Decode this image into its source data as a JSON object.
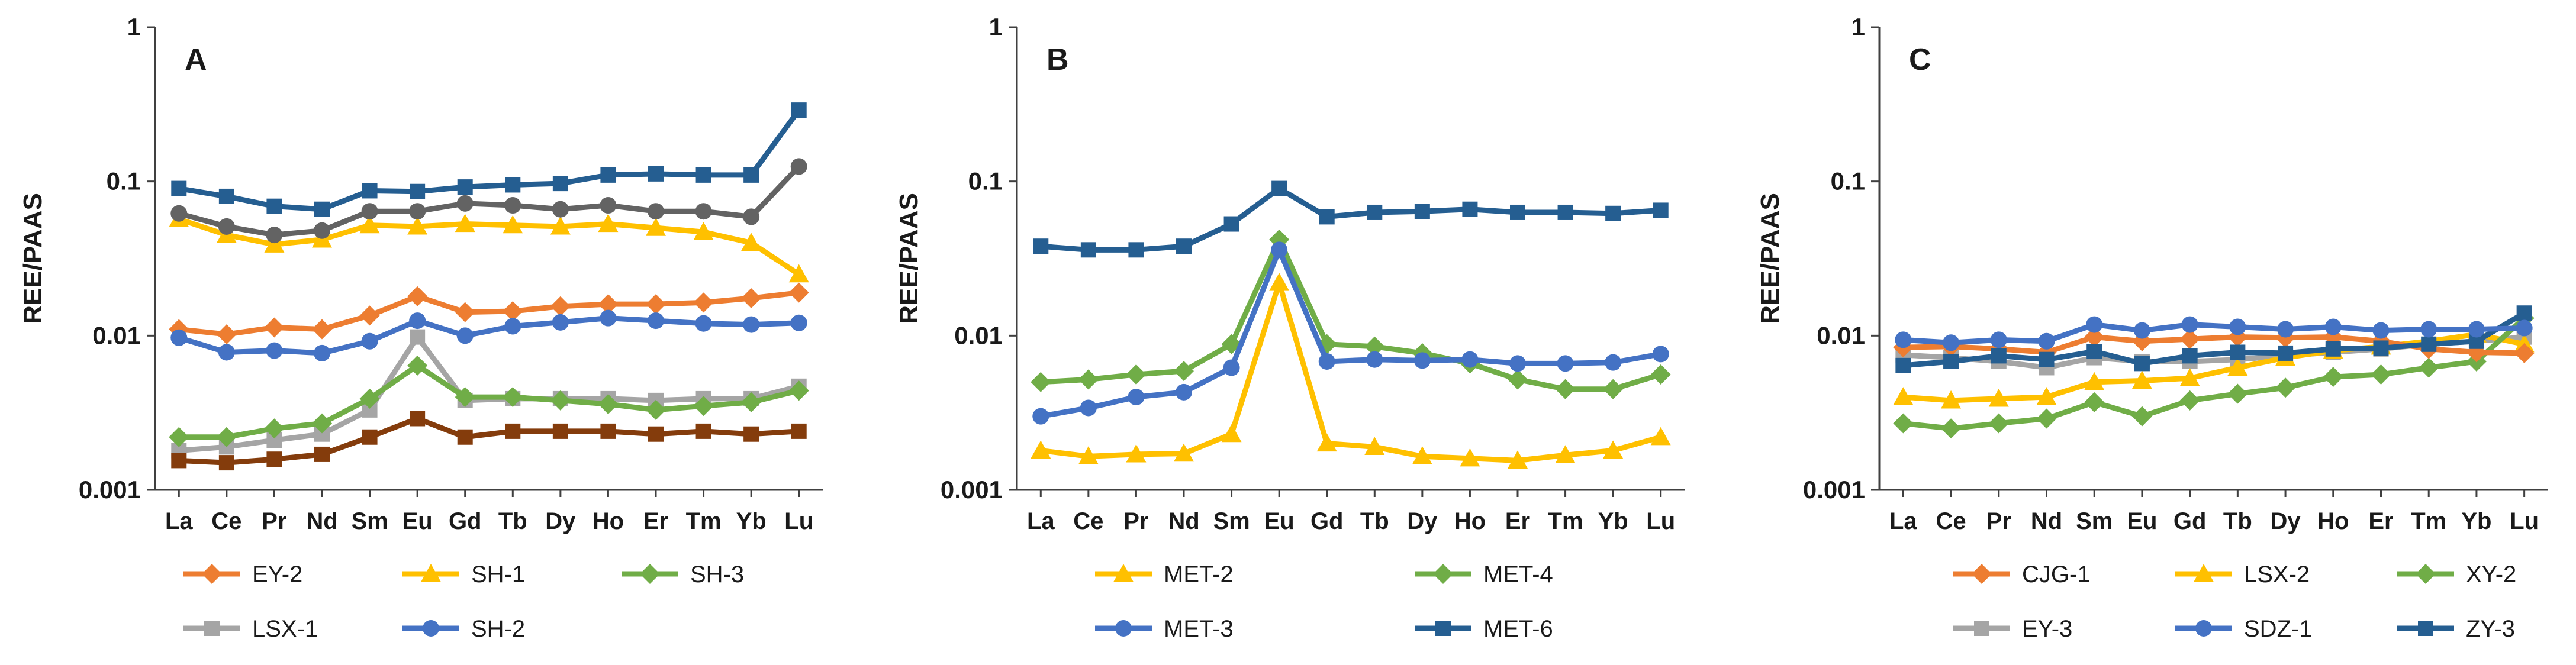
{
  "chart_data": [
    {
      "type": "line",
      "panel_label": "A",
      "ylabel": "REE/PAAS",
      "yscale": "log",
      "ylim": [
        0.001,
        1
      ],
      "ytick_labels": [
        "1",
        "0.1",
        "0.01",
        "0.001"
      ],
      "categories": [
        "La",
        "Ce",
        "Pr",
        "Nd",
        "Sm",
        "Eu",
        "Gd",
        "Tb",
        "Dy",
        "Ho",
        "Er",
        "Tm",
        "Yb",
        "Lu"
      ],
      "series": [
        {
          "name": "LSX-1",
          "color": "#a5a5a5",
          "marker": "square",
          "in_legend": true,
          "values": [
            0.0018,
            0.0019,
            0.0021,
            0.0023,
            0.0033,
            0.0098,
            0.0038,
            0.0039,
            0.0039,
            0.0039,
            0.0038,
            0.0039,
            0.0039,
            0.0047
          ]
        },
        {
          "name": "SH-3",
          "color": "#70ad47",
          "marker": "diamond",
          "in_legend": true,
          "values": [
            0.0022,
            0.0022,
            0.0025,
            0.0027,
            0.0039,
            0.0064,
            0.004,
            0.004,
            0.0038,
            0.0036,
            0.0033,
            0.0035,
            0.0037,
            0.0044
          ]
        },
        {
          "name": "",
          "color": "#843c0c",
          "marker": "square",
          "in_legend": false,
          "values": [
            0.00155,
            0.0015,
            0.00158,
            0.0017,
            0.0022,
            0.0029,
            0.0022,
            0.0024,
            0.0024,
            0.0024,
            0.0023,
            0.0024,
            0.0023,
            0.0024
          ]
        },
        {
          "name": "EY-2",
          "color": "#ed7d31",
          "marker": "diamond",
          "in_legend": true,
          "values": [
            0.011,
            0.0102,
            0.0113,
            0.011,
            0.0135,
            0.018,
            0.0142,
            0.0144,
            0.0155,
            0.016,
            0.016,
            0.0164,
            0.0175,
            0.019
          ]
        },
        {
          "name": "SH-2",
          "color": "#4472c4",
          "marker": "circle",
          "in_legend": true,
          "values": [
            0.0097,
            0.0078,
            0.008,
            0.0077,
            0.0092,
            0.0125,
            0.01,
            0.0115,
            0.0122,
            0.013,
            0.0125,
            0.012,
            0.0118,
            0.0121
          ]
        },
        {
          "name": "SH-1",
          "color": "#ffc000",
          "marker": "triangle",
          "in_legend": true,
          "values": [
            0.057,
            0.045,
            0.039,
            0.042,
            0.052,
            0.051,
            0.053,
            0.052,
            0.051,
            0.053,
            0.05,
            0.047,
            0.04,
            0.025
          ]
        },
        {
          "name": "",
          "color": "#636363",
          "marker": "circle",
          "in_legend": false,
          "values": [
            0.062,
            0.051,
            0.045,
            0.048,
            0.064,
            0.064,
            0.072,
            0.07,
            0.066,
            0.07,
            0.064,
            0.064,
            0.059,
            0.125
          ]
        },
        {
          "name": "",
          "color": "#255e91",
          "marker": "square",
          "in_legend": false,
          "values": [
            0.09,
            0.08,
            0.069,
            0.066,
            0.087,
            0.086,
            0.092,
            0.095,
            0.097,
            0.11,
            0.112,
            0.11,
            0.11,
            0.29
          ]
        }
      ],
      "legend_rows": [
        [
          "EY-2",
          "SH-1",
          "SH-3"
        ],
        [
          "LSX-1",
          "SH-2"
        ]
      ]
    },
    {
      "type": "line",
      "panel_label": "B",
      "ylabel": "REE/PAAS",
      "yscale": "log",
      "ylim": [
        0.001,
        1
      ],
      "ytick_labels": [
        "1",
        "0.1",
        "0.01",
        "0.001"
      ],
      "categories": [
        "La",
        "Ce",
        "Pr",
        "Nd",
        "Sm",
        "Eu",
        "Gd",
        "Tb",
        "Dy",
        "Ho",
        "Er",
        "Tm",
        "Yb",
        "Lu"
      ],
      "series": [
        {
          "name": "MET-2",
          "color": "#ffc000",
          "marker": "triangle",
          "in_legend": true,
          "values": [
            0.0018,
            0.00165,
            0.0017,
            0.00172,
            0.0023,
            0.022,
            0.002,
            0.0019,
            0.00165,
            0.0016,
            0.00155,
            0.00168,
            0.0018,
            0.0022
          ]
        },
        {
          "name": "MET-4",
          "color": "#70ad47",
          "marker": "diamond",
          "in_legend": true,
          "values": [
            0.005,
            0.0052,
            0.0056,
            0.0059,
            0.0088,
            0.042,
            0.0088,
            0.0085,
            0.0077,
            0.0066,
            0.0052,
            0.0045,
            0.0045,
            0.0056
          ]
        },
        {
          "name": "MET-3",
          "color": "#4472c4",
          "marker": "circle",
          "in_legend": true,
          "values": [
            0.003,
            0.0034,
            0.004,
            0.0043,
            0.0062,
            0.036,
            0.0068,
            0.007,
            0.0069,
            0.007,
            0.0066,
            0.0066,
            0.0067,
            0.0076
          ]
        },
        {
          "name": "MET-6",
          "color": "#255e91",
          "marker": "square",
          "in_legend": true,
          "values": [
            0.038,
            0.036,
            0.036,
            0.038,
            0.053,
            0.09,
            0.059,
            0.063,
            0.064,
            0.066,
            0.063,
            0.063,
            0.062,
            0.065
          ]
        }
      ],
      "legend_rows": [
        [
          "MET-2",
          "MET-4"
        ],
        [
          "MET-3",
          "MET-6"
        ]
      ]
    },
    {
      "type": "line",
      "panel_label": "C",
      "ylabel": "REE/PAAS",
      "yscale": "log",
      "ylim": [
        0.001,
        1
      ],
      "ytick_labels": [
        "1",
        "0.1",
        "0.01",
        "0.001"
      ],
      "categories": [
        "La",
        "Ce",
        "Pr",
        "Nd",
        "Sm",
        "Eu",
        "Gd",
        "Tb",
        "Dy",
        "Ho",
        "Er",
        "Tm",
        "Yb",
        "Lu"
      ],
      "series": [
        {
          "name": "EY-3",
          "color": "#a5a5a5",
          "marker": "square",
          "in_legend": true,
          "values": [
            0.0075,
            0.0072,
            0.0068,
            0.0062,
            0.0072,
            0.0068,
            0.0068,
            0.007,
            0.0074,
            0.0078,
            0.0082,
            0.0088,
            0.0092,
            0.0098
          ]
        },
        {
          "name": "LSX-2",
          "color": "#ffc000",
          "marker": "triangle",
          "in_legend": true,
          "values": [
            0.004,
            0.0038,
            0.0039,
            0.004,
            0.005,
            0.0051,
            0.0053,
            0.0062,
            0.0072,
            0.008,
            0.0085,
            0.0092,
            0.0102,
            0.0088
          ]
        },
        {
          "name": "XY-2",
          "color": "#70ad47",
          "marker": "diamond",
          "in_legend": true,
          "values": [
            0.0027,
            0.0025,
            0.0027,
            0.0029,
            0.0037,
            0.003,
            0.0038,
            0.0042,
            0.0046,
            0.0054,
            0.0056,
            0.0062,
            0.0068,
            0.013
          ]
        },
        {
          "name": "CJG-1",
          "color": "#ed7d31",
          "marker": "diamond",
          "in_legend": true,
          "values": [
            0.0084,
            0.0085,
            0.0082,
            0.0078,
            0.0098,
            0.0092,
            0.0095,
            0.0098,
            0.0097,
            0.0098,
            0.0092,
            0.0082,
            0.0078,
            0.0077
          ]
        },
        {
          "name": "ZY-3",
          "color": "#255e91",
          "marker": "square",
          "in_legend": true,
          "values": [
            0.0064,
            0.0068,
            0.0074,
            0.007,
            0.0079,
            0.0066,
            0.0074,
            0.0078,
            0.0077,
            0.0082,
            0.0083,
            0.0088,
            0.0092,
            0.014
          ]
        },
        {
          "name": "SDZ-1",
          "color": "#4472c4",
          "marker": "circle",
          "in_legend": true,
          "values": [
            0.0094,
            0.009,
            0.0094,
            0.0092,
            0.0118,
            0.0108,
            0.0118,
            0.0114,
            0.011,
            0.0114,
            0.0108,
            0.011,
            0.011,
            0.0112
          ]
        }
      ],
      "legend_rows": [
        [
          "CJG-1",
          "LSX-2",
          "XY-2"
        ],
        [
          "EY-3",
          "SDZ-1",
          "ZY-3"
        ]
      ]
    }
  ]
}
